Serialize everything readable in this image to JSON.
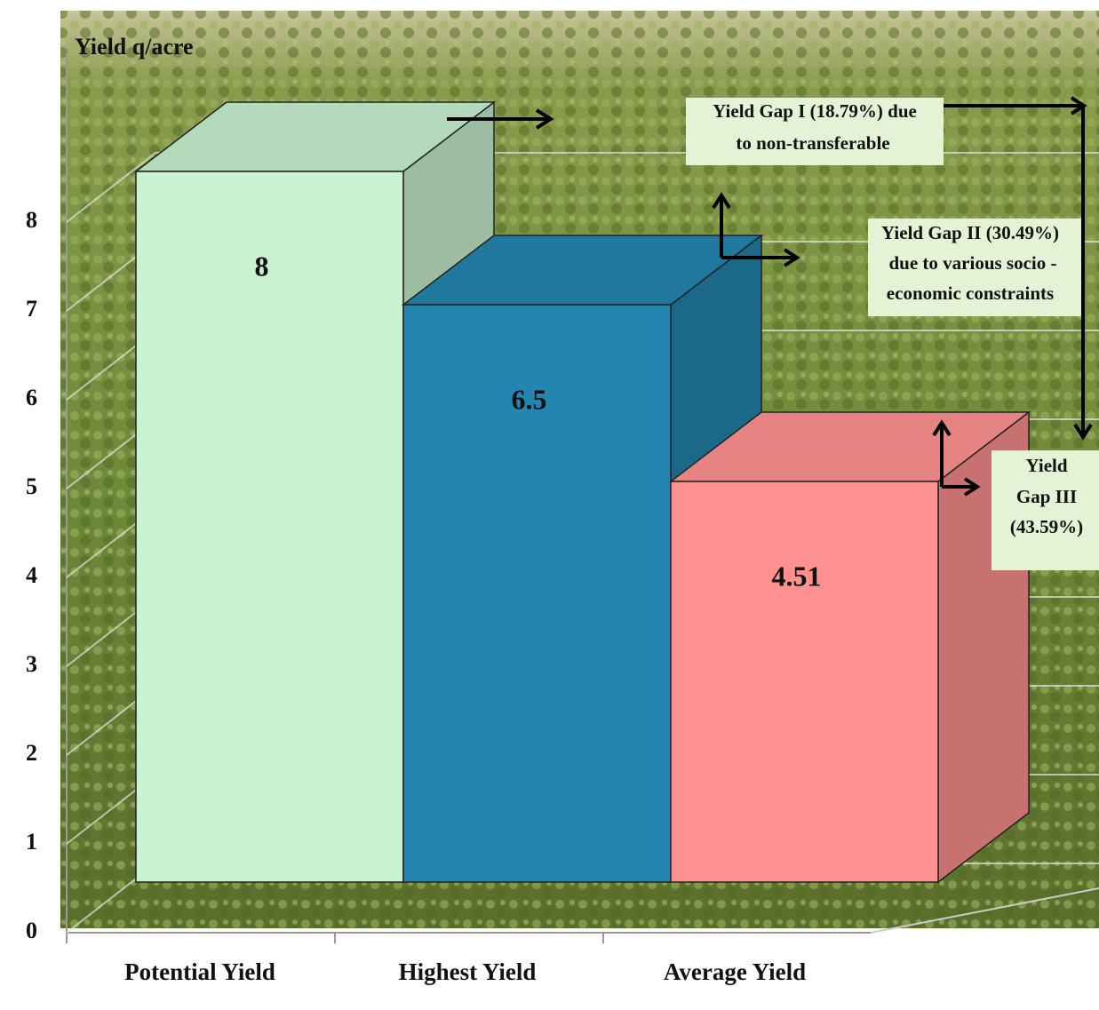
{
  "chart_data": {
    "type": "bar3d",
    "y_label": "Yield q/acre",
    "categories": [
      "Potential  Yield",
      "Highest Yield",
      "Average Yield"
    ],
    "values": [
      8,
      6.5,
      4.51
    ],
    "colors": [
      "#c8f2d0",
      "#2385b0",
      "#ff9191"
    ],
    "ylim": [
      0,
      10
    ],
    "yticks": [
      0,
      1,
      2,
      3,
      4,
      5,
      6,
      7,
      8
    ],
    "grid": true,
    "annotations": [
      {
        "lines": [
          "Yield Gap I (18.79%)  due",
          "to non-transferable"
        ]
      },
      {
        "lines": [
          "Yield Gap II (30.49%)",
          "due to various socio -",
          "economic constraints"
        ]
      },
      {
        "lines": [
          "Yield",
          "Gap III",
          "(43.59%)"
        ]
      }
    ]
  }
}
